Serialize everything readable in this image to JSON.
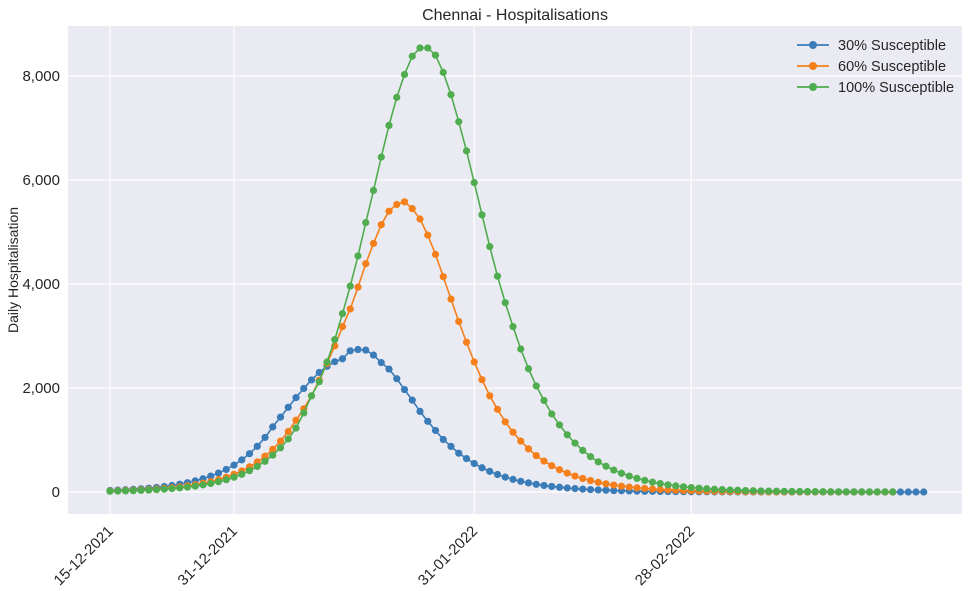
{
  "chart_data": {
    "type": "line",
    "title": "Chennai - Hospitalisations",
    "xlabel": "",
    "ylabel": "Daily Hospitalisation",
    "x_start": "15-12-2021",
    "x_step_days": 1,
    "x_ticks": [
      "15-12-2021",
      "31-12-2021",
      "31-01-2022",
      "28-02-2022"
    ],
    "ylim": [
      -400,
      8900
    ],
    "y_ticks": [
      0,
      2000,
      4000,
      6000,
      8000
    ],
    "y_tick_labels": [
      "0",
      "2,000",
      "4,000",
      "6,000",
      "8,000"
    ],
    "grid": true,
    "legend_position": "top-right",
    "series": [
      {
        "name": "30% Susceptible",
        "color": "#3a7cb8",
        "values": [
          30,
          36,
          43,
          51,
          61,
          73,
          88,
          105,
          125,
          150,
          179,
          214,
          255,
          305,
          364,
          434,
          518,
          618,
          737,
          879,
          1049,
          1252,
          1440,
          1629,
          1815,
          1992,
          2155,
          2299,
          2417,
          2506,
          2562,
          2715,
          2740,
          2730,
          2633,
          2489,
          2364,
          2179,
          1970,
          1767,
          1550,
          1359,
          1184,
          1010,
          877,
          746,
          643,
          548,
          466,
          397,
          337,
          286,
          243,
          206,
          175,
          148,
          126,
          107,
          91,
          77,
          65,
          55,
          47,
          40,
          34,
          28,
          24,
          20,
          17,
          14,
          12,
          10,
          9,
          7,
          6,
          5,
          4,
          4,
          3,
          3,
          2,
          2,
          2,
          1,
          1,
          1,
          1,
          1,
          0,
          0,
          0,
          0,
          0,
          0,
          0,
          0,
          0,
          0,
          0,
          0,
          0,
          0,
          0,
          0,
          0,
          0
        ]
      },
      {
        "name": "60% Susceptible",
        "color": "#f57f1a",
        "values": [
          20,
          24,
          29,
          34,
          41,
          49,
          58,
          70,
          83,
          99,
          118,
          141,
          168,
          200,
          239,
          285,
          340,
          405,
          484,
          577,
          688,
          821,
          978,
          1163,
          1380,
          1600,
          1850,
          2150,
          2470,
          2810,
          3180,
          3520,
          3940,
          4390,
          4780,
          5140,
          5400,
          5530,
          5580,
          5450,
          5250,
          4940,
          4570,
          4140,
          3710,
          3280,
          2880,
          2500,
          2160,
          1850,
          1590,
          1350,
          1150,
          980,
          830,
          700,
          595,
          505,
          428,
          363,
          307,
          260,
          220,
          186,
          157,
          133,
          112,
          95,
          80,
          68,
          57,
          48,
          41,
          34,
          29,
          25,
          21,
          17,
          15,
          12,
          10,
          9,
          7,
          6,
          5,
          4,
          4,
          3,
          3,
          2,
          2,
          2,
          1,
          1,
          1,
          1,
          1,
          0,
          0,
          0,
          0,
          0
        ]
      },
      {
        "name": "100% Susceptible",
        "color": "#4fad4f",
        "values": [
          15,
          18,
          22,
          26,
          32,
          38,
          46,
          55,
          66,
          79,
          95,
          114,
          137,
          164,
          197,
          237,
          284,
          341,
          410,
          492,
          590,
          708,
          850,
          1020,
          1230,
          1520,
          1850,
          2120,
          2500,
          2930,
          3430,
          3960,
          4540,
          5180,
          5800,
          6440,
          7050,
          7590,
          8030,
          8380,
          8540,
          8540,
          8400,
          8070,
          7640,
          7120,
          6560,
          5950,
          5330,
          4720,
          4150,
          3640,
          3180,
          2750,
          2370,
          2040,
          1760,
          1500,
          1290,
          1100,
          940,
          800,
          680,
          580,
          495,
          422,
          360,
          307,
          262,
          223,
          190,
          162,
          138,
          118,
          100,
          85,
          73,
          62,
          53,
          45,
          38,
          33,
          28,
          24,
          20,
          17,
          15,
          13,
          11,
          9,
          8,
          7,
          6,
          5,
          4,
          4,
          3,
          3,
          2,
          2,
          2,
          2
        ]
      }
    ]
  }
}
